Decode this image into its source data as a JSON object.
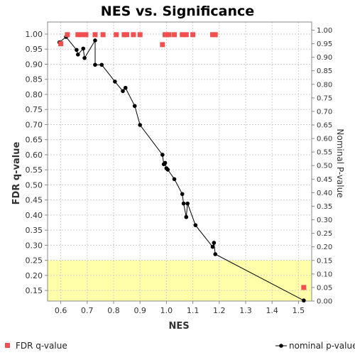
{
  "chart_data": {
    "type": "scatter",
    "title": "NES vs. Significance",
    "xlabel": "NES",
    "ylabel_left": "FDR q-value",
    "ylabel_right": "Nominal P-value",
    "xlim": [
      0.55,
      1.55
    ],
    "ylim_left": [
      0.115,
      1.04
    ],
    "ylim_right": [
      0.0,
      1.03
    ],
    "x_ticks": [
      "0.6",
      "0.7",
      "0.8",
      "0.9",
      "1.0",
      "1.1",
      "1.2",
      "1.3",
      "1.4",
      "1.5"
    ],
    "x_tick_values": [
      0.6,
      0.7,
      0.8,
      0.9,
      1.0,
      1.1,
      1.2,
      1.3,
      1.4,
      1.5
    ],
    "y_left_ticks": [
      "0.15",
      "0.20",
      "0.25",
      "0.30",
      "0.35",
      "0.40",
      "0.45",
      "0.50",
      "0.55",
      "0.60",
      "0.65",
      "0.70",
      "0.75",
      "0.80",
      "0.85",
      "0.90",
      "0.95",
      "1.00"
    ],
    "y_left_tick_values": [
      0.15,
      0.2,
      0.25,
      0.3,
      0.35,
      0.4,
      0.45,
      0.5,
      0.55,
      0.6,
      0.65,
      0.7,
      0.75,
      0.8,
      0.85,
      0.9,
      0.95,
      1.0
    ],
    "y_right_ticks": [
      "0.00",
      "0.05",
      "0.10",
      "0.15",
      "0.20",
      "0.25",
      "0.30",
      "0.35",
      "0.40",
      "0.45",
      "0.50",
      "0.55",
      "0.60",
      "0.65",
      "0.70",
      "0.75",
      "0.80",
      "0.85",
      "0.90",
      "0.95",
      "1.00"
    ],
    "y_right_tick_values": [
      0.0,
      0.05,
      0.1,
      0.15,
      0.2,
      0.25,
      0.3,
      0.35,
      0.4,
      0.45,
      0.5,
      0.55,
      0.6,
      0.65,
      0.7,
      0.75,
      0.8,
      0.85,
      0.9,
      0.95,
      1.0
    ],
    "highlight_band_left": [
      0.115,
      0.25
    ],
    "highlight_color": "#ffffaa",
    "grid": true,
    "series": [
      {
        "name": "FDR q-value",
        "axis": "left",
        "color": "#f05050",
        "marker": "square",
        "points": [
          {
            "x": 0.6,
            "y": 0.968
          },
          {
            "x": 0.625,
            "y": 0.998
          },
          {
            "x": 0.665,
            "y": 0.998
          },
          {
            "x": 0.68,
            "y": 0.998
          },
          {
            "x": 0.695,
            "y": 0.998
          },
          {
            "x": 0.73,
            "y": 0.998
          },
          {
            "x": 0.76,
            "y": 0.998
          },
          {
            "x": 0.81,
            "y": 0.998
          },
          {
            "x": 0.84,
            "y": 0.998
          },
          {
            "x": 0.85,
            "y": 0.998
          },
          {
            "x": 0.875,
            "y": 0.998
          },
          {
            "x": 0.9,
            "y": 0.998
          },
          {
            "x": 0.985,
            "y": 0.965
          },
          {
            "x": 0.995,
            "y": 0.998
          },
          {
            "x": 1.0,
            "y": 0.998
          },
          {
            "x": 1.01,
            "y": 0.998
          },
          {
            "x": 1.03,
            "y": 0.998
          },
          {
            "x": 1.06,
            "y": 0.998
          },
          {
            "x": 1.075,
            "y": 0.998
          },
          {
            "x": 1.1,
            "y": 0.998
          },
          {
            "x": 1.175,
            "y": 0.998
          },
          {
            "x": 1.185,
            "y": 0.998
          },
          {
            "x": 1.52,
            "y": 0.16
          }
        ]
      },
      {
        "name": "nominal p-value",
        "axis": "right",
        "color": "#000000",
        "marker": "circle-line",
        "points": [
          {
            "x": 0.595,
            "y": 0.955
          },
          {
            "x": 0.62,
            "y": 0.975
          },
          {
            "x": 0.66,
            "y": 0.927
          },
          {
            "x": 0.665,
            "y": 0.91
          },
          {
            "x": 0.685,
            "y": 0.932
          },
          {
            "x": 0.69,
            "y": 0.897
          },
          {
            "x": 0.73,
            "y": 0.962
          },
          {
            "x": 0.73,
            "y": 0.872
          },
          {
            "x": 0.755,
            "y": 0.872
          },
          {
            "x": 0.805,
            "y": 0.81
          },
          {
            "x": 0.835,
            "y": 0.775
          },
          {
            "x": 0.845,
            "y": 0.787
          },
          {
            "x": 0.88,
            "y": 0.72
          },
          {
            "x": 0.9,
            "y": 0.65
          },
          {
            "x": 0.985,
            "y": 0.54
          },
          {
            "x": 0.99,
            "y": 0.505
          },
          {
            "x": 0.995,
            "y": 0.51
          },
          {
            "x": 1.0,
            "y": 0.49
          },
          {
            "x": 1.005,
            "y": 0.485
          },
          {
            "x": 1.03,
            "y": 0.45
          },
          {
            "x": 1.06,
            "y": 0.395
          },
          {
            "x": 1.065,
            "y": 0.36
          },
          {
            "x": 1.075,
            "y": 0.31
          },
          {
            "x": 1.08,
            "y": 0.36
          },
          {
            "x": 1.11,
            "y": 0.28
          },
          {
            "x": 1.175,
            "y": 0.2
          },
          {
            "x": 1.18,
            "y": 0.215
          },
          {
            "x": 1.185,
            "y": 0.173
          },
          {
            "x": 1.52,
            "y": 0.002
          }
        ]
      }
    ],
    "legend": [
      {
        "label": "FDR q-value",
        "marker": "square",
        "color": "#f05050",
        "position": "bottom-left"
      },
      {
        "label": "nominal p-value",
        "marker": "circle-line",
        "color": "#000000",
        "position": "bottom-right"
      }
    ]
  }
}
